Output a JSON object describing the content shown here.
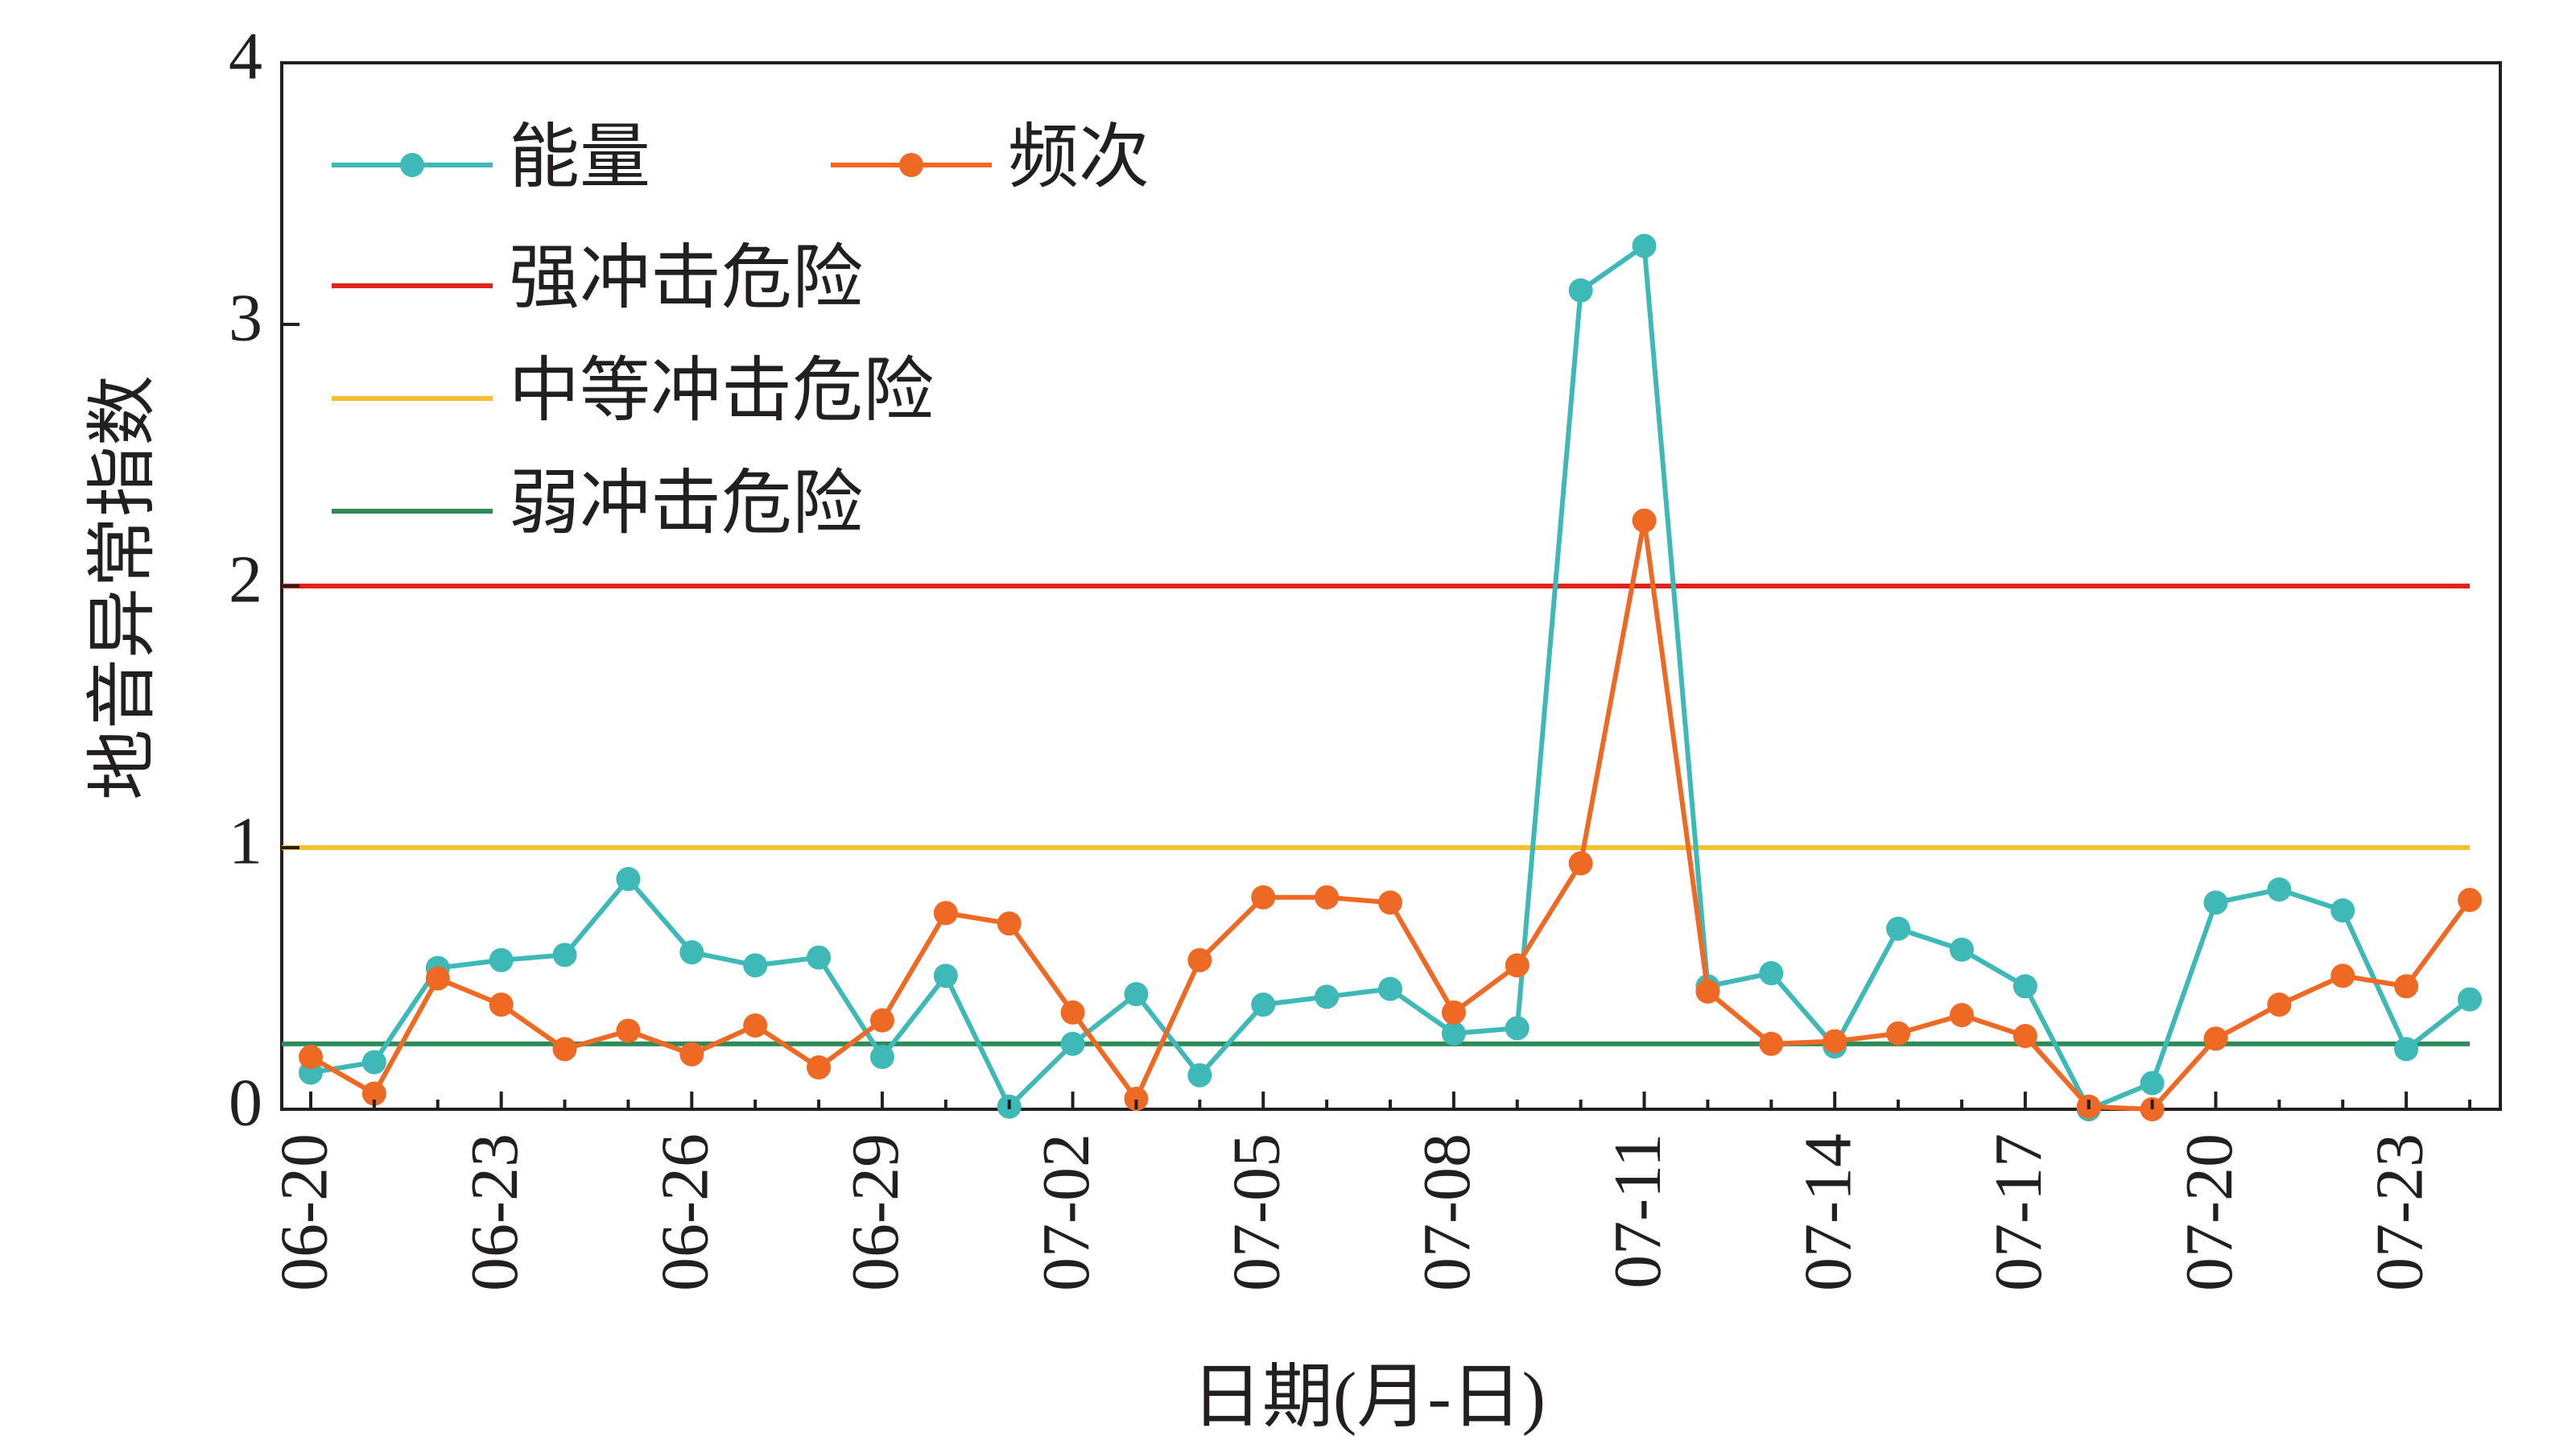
{
  "chart_data": {
    "type": "line",
    "xlabel": "日期(月-日)",
    "ylabel": "地音异常指数",
    "ylim": [
      0,
      4
    ],
    "yticks": [
      "0",
      "1",
      "2",
      "3",
      "4"
    ],
    "x": [
      "06-20",
      "06-21",
      "06-22",
      "06-23",
      "06-24",
      "06-25",
      "06-26",
      "06-27",
      "06-28",
      "06-29",
      "06-30",
      "07-01",
      "07-02",
      "07-03",
      "07-04",
      "07-05",
      "07-06",
      "07-07",
      "07-08",
      "07-09",
      "07-10",
      "07-11",
      "07-12",
      "07-13",
      "07-14",
      "07-15",
      "07-16",
      "07-17",
      "07-18",
      "07-19",
      "07-20",
      "07-21",
      "07-22",
      "07-23",
      "07-24"
    ],
    "xtick_labels": [
      "06-20",
      "06-23",
      "06-26",
      "06-29",
      "07-02",
      "07-05",
      "07-08",
      "07-11",
      "07-14",
      "07-17",
      "07-20",
      "07-23"
    ],
    "legend_position": "top-left",
    "series": [
      {
        "name": "能量",
        "color": "#3fb8b8",
        "marker": true,
        "values": [
          0.14,
          0.18,
          0.54,
          0.57,
          0.59,
          0.88,
          0.6,
          0.55,
          0.58,
          0.2,
          0.51,
          0.01,
          0.25,
          0.44,
          0.13,
          0.4,
          0.43,
          0.46,
          0.29,
          0.31,
          3.13,
          3.3,
          0.47,
          0.52,
          0.24,
          0.69,
          0.61,
          0.47,
          0.0,
          0.1,
          0.79,
          0.84,
          0.76,
          0.23,
          0.42
        ]
      },
      {
        "name": "频次",
        "color": "#ee6a24",
        "marker": true,
        "values": [
          0.2,
          0.06,
          0.5,
          0.4,
          0.23,
          0.3,
          0.21,
          0.32,
          0.16,
          0.34,
          0.75,
          0.71,
          0.37,
          0.04,
          0.57,
          0.81,
          0.81,
          0.79,
          0.37,
          0.55,
          0.94,
          2.25,
          0.45,
          0.25,
          0.26,
          0.29,
          0.36,
          0.28,
          0.01,
          0.0,
          0.27,
          0.4,
          0.51,
          0.47,
          0.8
        ]
      }
    ],
    "reference_lines": [
      {
        "name": "强冲击危险",
        "value": 2,
        "color": "#e2231a"
      },
      {
        "name": "中等冲击危险",
        "value": 1,
        "color": "#f6c12d"
      },
      {
        "name": "弱冲击危险",
        "value": 0.25,
        "color": "#2e8b57"
      }
    ]
  }
}
